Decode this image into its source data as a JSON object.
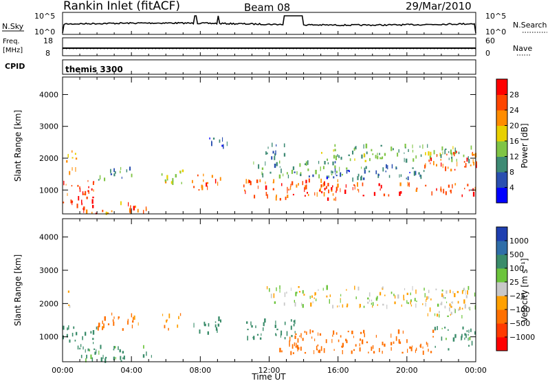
{
  "header": {
    "title": "Rankin Inlet (fitACF)",
    "beam": "Beam 08",
    "date": "29/Mar/2010"
  },
  "strip_labels": {
    "nsky": "N.Sky",
    "nsky_ticks": [
      "10^5",
      "10^0"
    ],
    "nsearch": "N.Search",
    "nsearch_ticks": [
      "10^5",
      "10^0"
    ],
    "freq_line1": "Freq.",
    "freq_line2": "[MHz]",
    "freq_ticks": [
      "18",
      "8"
    ],
    "nave": "Nave",
    "nave_ticks": [
      "60",
      "0"
    ],
    "cpid": "CPID",
    "cpid_value": "themis 3300"
  },
  "colors": {
    "power_scale": [
      "#0000ff",
      "#2a4fb0",
      "#3e8a74",
      "#7fc445",
      "#e8d000",
      "#ff8c00",
      "#ff4500",
      "#ff0000"
    ],
    "velocity_scale": [
      "#1e3fb0",
      "#2f6ea8",
      "#3a8c6a",
      "#6cc43c",
      "#c8c8c8",
      "#ffa000",
      "#ff7000",
      "#ff3a00",
      "#ff0000"
    ]
  },
  "chart_data": [
    {
      "type": "heatmap",
      "name": "power",
      "ylabel": "Slant Range [km]",
      "yticks": [
        "1000",
        "2000",
        "3000",
        "4000"
      ],
      "ylim": [
        250,
        4550
      ],
      "xlim": [
        0,
        24
      ],
      "colorbar_label": "Power [dB]",
      "colorbar_ticks": [
        "4",
        "8",
        "12",
        "16",
        "20",
        "24",
        "28"
      ],
      "clim": [
        0,
        32
      ],
      "regions": [
        {
          "t0": 0.0,
          "t1": 1.9,
          "r0": 500,
          "r1": 1300,
          "value": 28
        },
        {
          "t0": 0.2,
          "t1": 0.8,
          "r0": 1500,
          "r1": 2300,
          "value": 20
        },
        {
          "t0": 1.9,
          "t1": 4.5,
          "r0": 1300,
          "r1": 1700,
          "value": 10
        },
        {
          "t0": 5.5,
          "t1": 7.0,
          "r0": 1200,
          "r1": 1700,
          "value": 17
        },
        {
          "t0": 0.8,
          "t1": 5.0,
          "r0": 250,
          "r1": 600,
          "value": 24
        },
        {
          "t0": 7.5,
          "t1": 9.2,
          "r0": 1000,
          "r1": 1600,
          "value": 26
        },
        {
          "t0": 11.5,
          "t1": 13.0,
          "r0": 2000,
          "r1": 2500,
          "value": 6
        },
        {
          "t0": 10.5,
          "t1": 16.0,
          "r0": 700,
          "r1": 1300,
          "value": 25
        },
        {
          "t0": 14.0,
          "t1": 24.0,
          "r0": 800,
          "r1": 1200,
          "value": 27
        },
        {
          "t0": 15.0,
          "t1": 24.0,
          "r0": 1900,
          "r1": 2400,
          "value": 13
        },
        {
          "t0": 21.0,
          "t1": 24.0,
          "r0": 1600,
          "r1": 2200,
          "value": 25
        },
        {
          "t0": 15.0,
          "t1": 21.0,
          "r0": 1300,
          "r1": 1800,
          "value": 8
        },
        {
          "t0": 8.5,
          "t1": 9.8,
          "r0": 2350,
          "r1": 2650,
          "value": 5
        },
        {
          "t0": 11.0,
          "t1": 16.0,
          "r0": 1400,
          "r1": 1900,
          "value": 11
        }
      ]
    },
    {
      "type": "heatmap",
      "name": "velocity",
      "ylabel": "Slant Range [km]",
      "yticks": [
        "1000",
        "2000",
        "3000",
        "4000"
      ],
      "ylim": [
        250,
        4550
      ],
      "xlim": [
        0,
        24
      ],
      "xticks": [
        "00:00",
        "04:00",
        "08:00",
        "12:00",
        "16:00",
        "20:00",
        "00:00"
      ],
      "xlabel": "Time UT",
      "colorbar_label": "Velocity [m s⁻¹]",
      "colorbar_ticks": [
        "1000",
        "500",
        "100",
        "25",
        "−25",
        "−100",
        "−500",
        "−1000"
      ],
      "regions": [
        {
          "t0": 0.0,
          "t1": 0.6,
          "r0": 1700,
          "r1": 2400,
          "value": 0
        },
        {
          "t0": 0.0,
          "t1": 2.0,
          "r0": 600,
          "r1": 1300,
          "value": 200
        },
        {
          "t0": 0.8,
          "t1": 5.2,
          "r0": 250,
          "r1": 700,
          "value": 150
        },
        {
          "t0": 2.0,
          "t1": 4.6,
          "r0": 1200,
          "r1": 1700,
          "value": -150
        },
        {
          "t0": 5.5,
          "t1": 7.2,
          "r0": 1200,
          "r1": 1700,
          "value": -120
        },
        {
          "t0": 7.5,
          "t1": 9.2,
          "r0": 1100,
          "r1": 1600,
          "value": 180
        },
        {
          "t0": 10.5,
          "t1": 13.5,
          "r0": 900,
          "r1": 1500,
          "value": 200
        },
        {
          "t0": 12.5,
          "t1": 21.5,
          "r0": 500,
          "r1": 1200,
          "value": -250
        },
        {
          "t0": 21.5,
          "t1": 24.0,
          "r0": 600,
          "r1": 1300,
          "value": 150
        },
        {
          "t0": 11.8,
          "t1": 24.0,
          "r0": 1900,
          "r1": 2500,
          "value": 0
        },
        {
          "t0": 21.0,
          "t1": 24.0,
          "r0": 1600,
          "r1": 2200,
          "value": 0
        }
      ]
    }
  ]
}
